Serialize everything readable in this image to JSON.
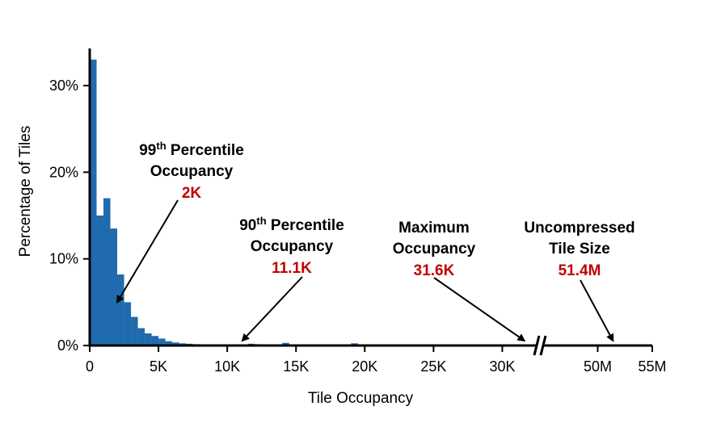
{
  "chart_data": {
    "type": "bar",
    "xlabel": "Tile Occupancy",
    "ylabel": "Percentage of Tiles",
    "y_ticks": [
      "0%",
      "10%",
      "20%",
      "30%"
    ],
    "y_tick_values": [
      0,
      10,
      20,
      30
    ],
    "ylim": [
      0,
      34
    ],
    "x_ticks": [
      "0",
      "5K",
      "10K",
      "15K",
      "20K",
      "25K",
      "30K"
    ],
    "x_tick_values": [
      0,
      5000,
      10000,
      15000,
      20000,
      25000,
      30000
    ],
    "x_ticks_after_break": [
      "50M",
      "55M"
    ],
    "x_ticks_after_break_values": [
      50000000,
      55000000
    ],
    "xlim_before_break": [
      0,
      32500
    ],
    "xlim_after_break": [
      45000000,
      55000000
    ],
    "axis_break": true,
    "grid": false,
    "bin_width": 500,
    "bins": [
      {
        "start": 0,
        "value": 33.0
      },
      {
        "start": 500,
        "value": 15.0
      },
      {
        "start": 1000,
        "value": 17.0
      },
      {
        "start": 1500,
        "value": 13.5
      },
      {
        "start": 2000,
        "value": 8.2
      },
      {
        "start": 2500,
        "value": 5.0
      },
      {
        "start": 3000,
        "value": 3.3
      },
      {
        "start": 3500,
        "value": 2.0
      },
      {
        "start": 4000,
        "value": 1.4
      },
      {
        "start": 4500,
        "value": 1.1
      },
      {
        "start": 5000,
        "value": 0.8
      },
      {
        "start": 5500,
        "value": 0.5
      },
      {
        "start": 6000,
        "value": 0.35
      },
      {
        "start": 6500,
        "value": 0.25
      },
      {
        "start": 7000,
        "value": 0.2
      },
      {
        "start": 7500,
        "value": 0.15
      },
      {
        "start": 8000,
        "value": 0.1
      },
      {
        "start": 8500,
        "value": 0.1
      },
      {
        "start": 9000,
        "value": 0.1
      },
      {
        "start": 11500,
        "value": 0.2
      },
      {
        "start": 12000,
        "value": 0.15
      },
      {
        "start": 14000,
        "value": 0.3
      },
      {
        "start": 19000,
        "value": 0.25
      }
    ],
    "annotations": [
      {
        "title": "99th Percentile",
        "sup": "th",
        "line2": "Occupancy",
        "value": "2K",
        "x": 2000,
        "y": 5.0
      },
      {
        "title": "90th Percentile",
        "sup": "th",
        "line2": "Occupancy",
        "value": "11.1K",
        "x": 11100,
        "y": 0.3
      },
      {
        "title": "Maximum",
        "line2": "Occupancy",
        "value": "31.6K",
        "x": 31600,
        "y": 0.3
      },
      {
        "title": "Uncompressed",
        "line2": "Tile Size",
        "value": "51.4M",
        "x": 51400000,
        "y": 0.3
      }
    ],
    "colors": {
      "bar": "#1f6bad",
      "axis": "#000000",
      "highlight": "#c00000"
    }
  }
}
